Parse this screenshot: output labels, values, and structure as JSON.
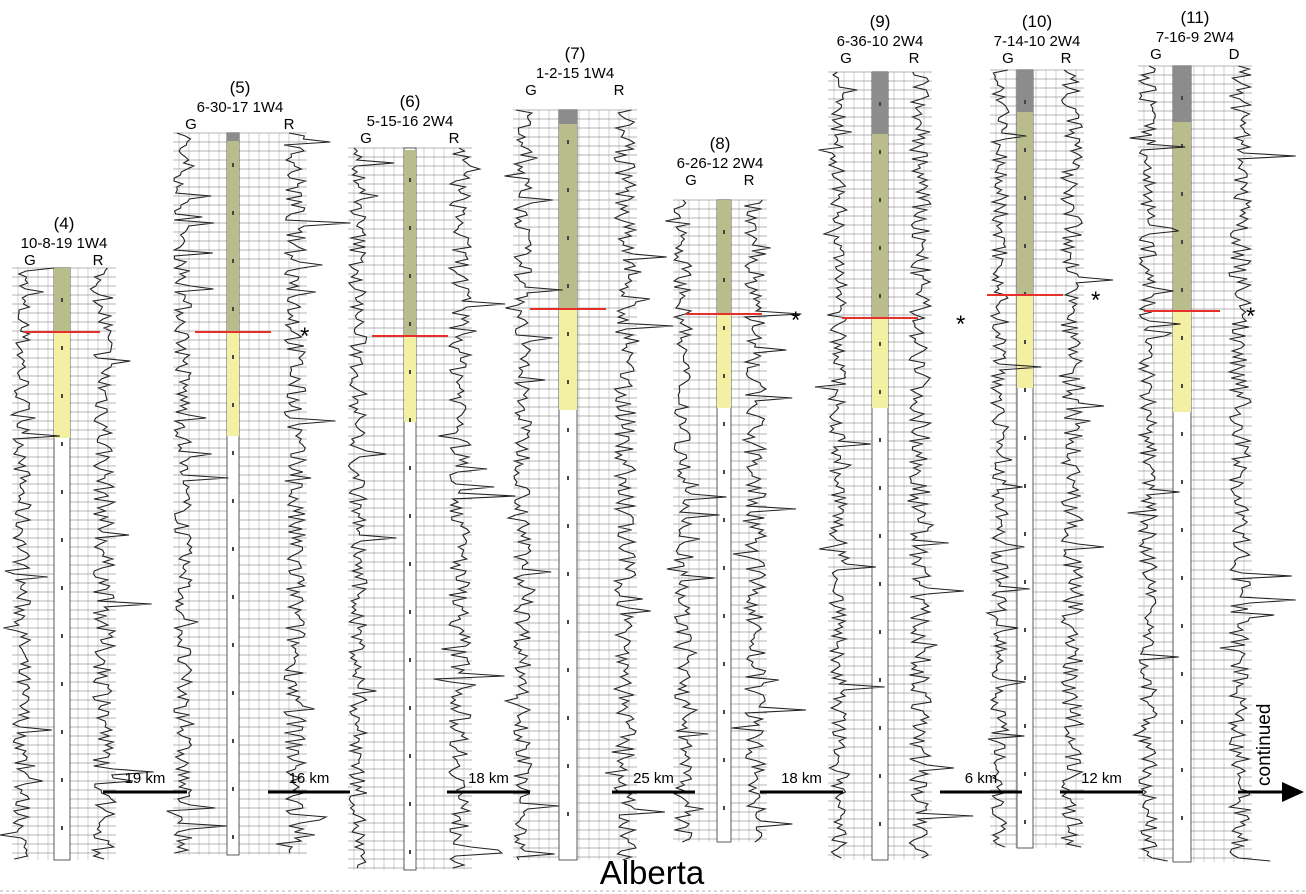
{
  "footer": {
    "title": "Alberta"
  },
  "continued_label": "continued",
  "asterisk": "*",
  "wells": [
    {
      "number": "(4)",
      "location": "10-8-19 1W4",
      "left_track": "G",
      "right_track": "R",
      "marker": false
    },
    {
      "number": "(5)",
      "location": "6-30-17 1W4",
      "left_track": "G",
      "right_track": "R",
      "marker": true
    },
    {
      "number": "(6)",
      "location": "5-15-16 2W4",
      "left_track": "G",
      "right_track": "R",
      "marker": false
    },
    {
      "number": "(7)",
      "location": "1-2-15 1W4",
      "left_track": "G",
      "right_track": "R",
      "marker": false
    },
    {
      "number": "(8)",
      "location": "6-26-12 2W4",
      "left_track": "G",
      "right_track": "R",
      "marker": true
    },
    {
      "number": "(9)",
      "location": "6-36-10 2W4",
      "left_track": "G",
      "right_track": "R",
      "marker": true
    },
    {
      "number": "(10)",
      "location": "7-14-10 2W4",
      "left_track": "G",
      "right_track": "R",
      "marker": true
    },
    {
      "number": "(11)",
      "location": "7-16-9 2W4",
      "left_track": "G",
      "right_track": "D",
      "marker": true
    }
  ],
  "distances": [
    "19 km",
    "16 km",
    "18 km",
    "25 km",
    "18 km",
    "6 km",
    "12 km"
  ],
  "colors": {
    "olive": "#b9bd8c",
    "yellow": "#f3f0a4",
    "gray": "#8c8c8c",
    "red": "#e8302b",
    "ink": "#222222"
  }
}
